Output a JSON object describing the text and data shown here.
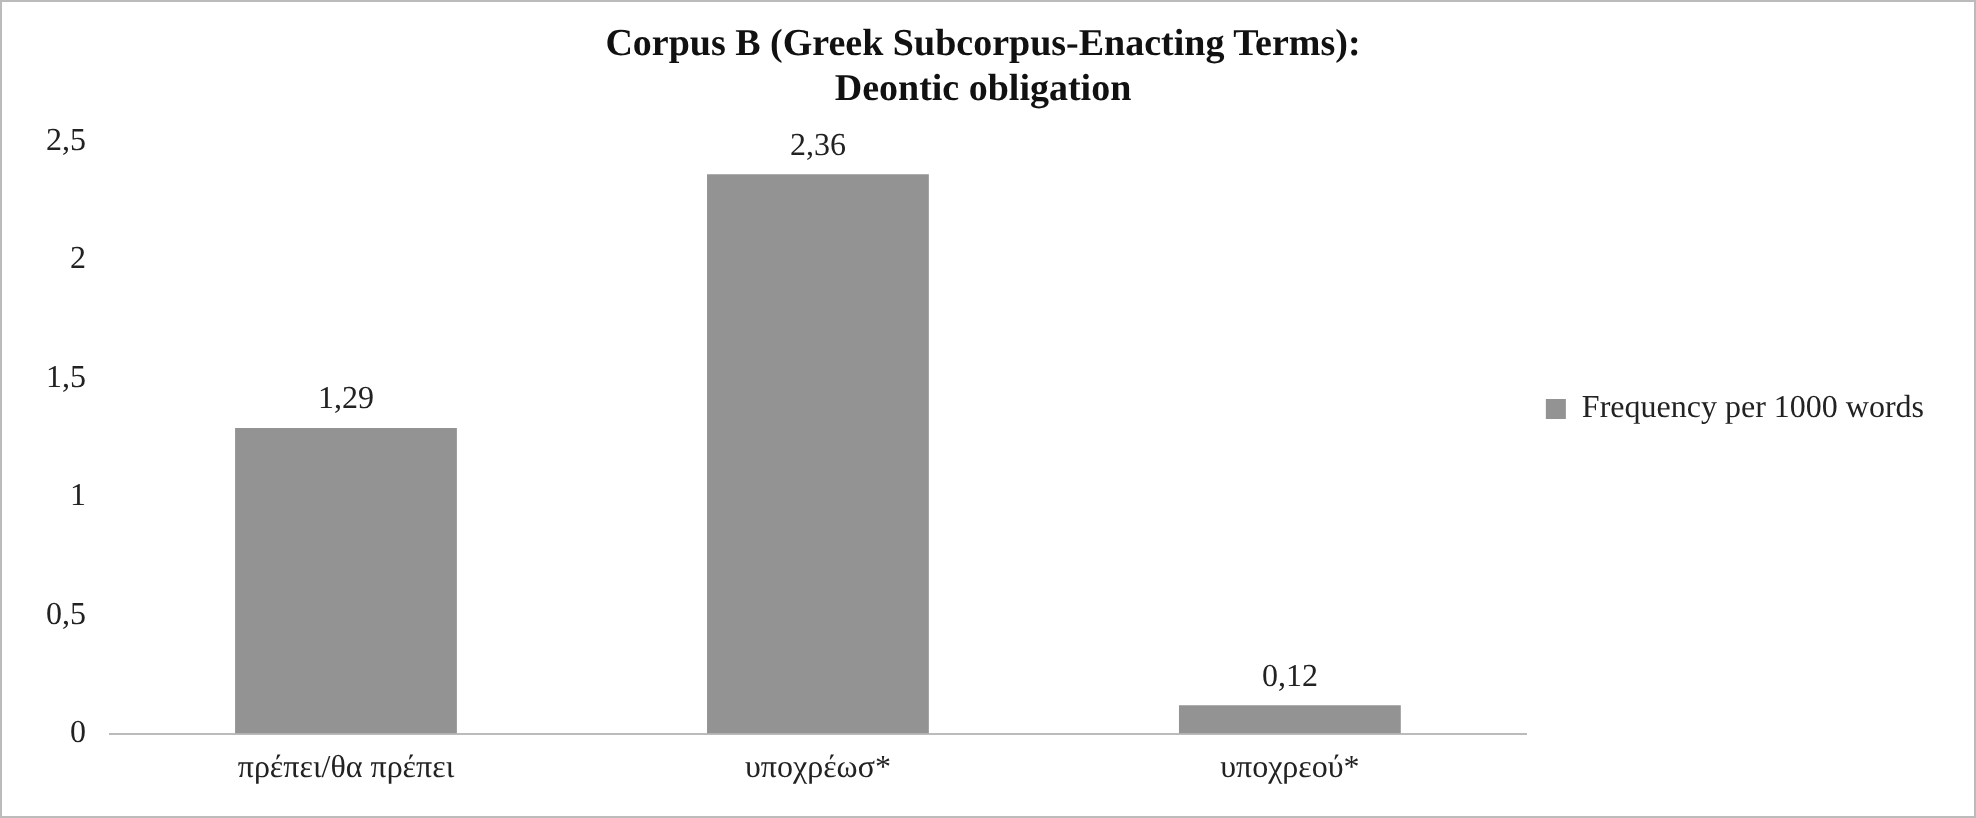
{
  "chart_data": {
    "type": "bar",
    "title": [
      "Corpus B (Greek Subcorpus-Enacting Terms):",
      "Deontic obligation"
    ],
    "categories": [
      "πρέπει/θα πρέπει",
      "υποχρέωσ*",
      "υποχρεού*"
    ],
    "series": [
      {
        "name": "Frequency per 1000 words",
        "color": "#939393",
        "values": [
          1.29,
          2.36,
          0.12
        ],
        "value_labels": [
          "1,29",
          "2,36",
          "0,12"
        ]
      }
    ],
    "ylim": [
      0,
      2.5
    ],
    "yticks": [
      0,
      {
        "value": 0.5,
        "label": "0,5"
      },
      1,
      {
        "value": 1.5,
        "label": "1,5"
      },
      2,
      {
        "value": 2.5,
        "label": "2,5"
      }
    ],
    "grid": false,
    "legend": "right"
  }
}
